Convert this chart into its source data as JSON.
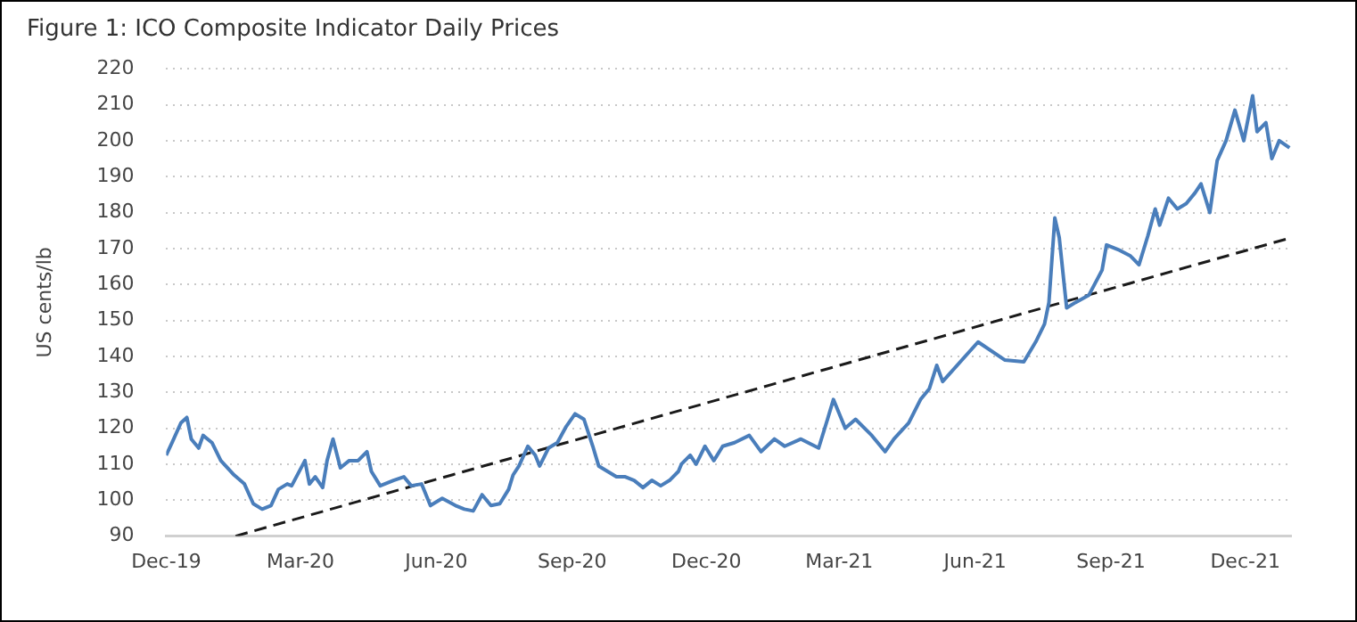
{
  "chart_data": {
    "type": "line",
    "title": "Figure 1: ICO Composite Indicator Daily Prices",
    "ylabel": "US cents/lb",
    "xlim": [
      "2019-12-01",
      "2022-01-01"
    ],
    "xticks": [
      {
        "value": "2019-12-01",
        "label": "Dec-19"
      },
      {
        "value": "2020-03-01",
        "label": "Mar-20"
      },
      {
        "value": "2020-06-01",
        "label": "Jun-20"
      },
      {
        "value": "2020-09-01",
        "label": "Sep-20"
      },
      {
        "value": "2020-12-01",
        "label": "Dec-20"
      },
      {
        "value": "2021-03-01",
        "label": "Mar-21"
      },
      {
        "value": "2021-06-01",
        "label": "Jun-21"
      },
      {
        "value": "2021-09-01",
        "label": "Sep-21"
      },
      {
        "value": "2021-12-01",
        "label": "Dec-21"
      }
    ],
    "ylim": [
      90,
      220
    ],
    "yticks": [
      90,
      100,
      110,
      120,
      130,
      140,
      150,
      160,
      170,
      180,
      190,
      200,
      210,
      220
    ],
    "grid": "y",
    "marker": "none",
    "series": [
      {
        "color": "#4a7ebb",
        "line_style": "solid",
        "x": [
          "2019-12-01",
          "2019-12-05",
          "2019-12-11",
          "2019-12-15",
          "2019-12-18",
          "2019-12-23",
          "2019-12-26",
          "2020-01-01",
          "2020-01-07",
          "2020-01-16",
          "2020-01-23",
          "2020-01-29",
          "2020-02-04",
          "2020-02-10",
          "2020-02-15",
          "2020-02-21",
          "2020-02-24",
          "2020-03-04",
          "2020-03-07",
          "2020-03-11",
          "2020-03-16",
          "2020-03-19",
          "2020-03-23",
          "2020-03-28",
          "2020-04-03",
          "2020-04-09",
          "2020-04-15",
          "2020-04-18",
          "2020-04-24",
          "2020-05-03",
          "2020-05-10",
          "2020-05-15",
          "2020-05-22",
          "2020-05-28",
          "2020-06-05",
          "2020-06-14",
          "2020-06-20",
          "2020-06-26",
          "2020-07-02",
          "2020-07-08",
          "2020-07-14",
          "2020-07-20",
          "2020-07-23",
          "2020-07-27",
          "2020-08-02",
          "2020-08-07",
          "2020-08-10",
          "2020-08-16",
          "2020-08-22",
          "2020-08-28",
          "2020-09-03",
          "2020-09-09",
          "2020-09-15",
          "2020-09-19",
          "2020-09-25",
          "2020-10-01",
          "2020-10-07",
          "2020-10-13",
          "2020-10-19",
          "2020-10-25",
          "2020-10-31",
          "2020-11-06",
          "2020-11-12",
          "2020-11-14",
          "2020-11-20",
          "2020-11-24",
          "2020-11-30",
          "2020-12-06",
          "2020-12-12",
          "2020-12-20",
          "2020-12-30",
          "2021-01-07",
          "2021-01-16",
          "2021-01-23",
          "2021-02-03",
          "2021-02-15",
          "2021-02-21",
          "2021-02-25",
          "2021-03-05",
          "2021-03-12",
          "2021-03-23",
          "2021-04-01",
          "2021-04-07",
          "2021-04-17",
          "2021-04-25",
          "2021-05-01",
          "2021-05-06",
          "2021-05-10",
          "2021-06-03",
          "2021-06-21",
          "2021-07-04",
          "2021-07-12",
          "2021-07-18",
          "2021-07-21",
          "2021-07-25",
          "2021-07-28",
          "2021-08-02",
          "2021-08-08",
          "2021-08-17",
          "2021-08-26",
          "2021-08-29",
          "2021-09-07",
          "2021-09-14",
          "2021-09-20",
          "2021-09-26",
          "2021-10-01",
          "2021-10-04",
          "2021-10-10",
          "2021-10-16",
          "2021-10-22",
          "2021-10-28",
          "2021-11-01",
          "2021-11-07",
          "2021-11-12",
          "2021-11-18",
          "2021-11-24",
          "2021-11-30",
          "2021-12-06",
          "2021-12-09",
          "2021-12-15",
          "2021-12-19",
          "2021-12-24",
          "2021-12-31"
        ],
        "values": [
          112.5,
          116,
          121.5,
          123,
          117,
          114.5,
          118,
          116,
          111,
          107,
          104.5,
          99,
          97.5,
          98.5,
          103,
          104.5,
          104,
          111,
          104.5,
          106.5,
          103.5,
          111,
          117,
          109,
          111,
          111,
          113.5,
          108,
          104,
          105.5,
          106.5,
          104,
          104.5,
          98.5,
          100.5,
          98.5,
          97.5,
          97,
          101.5,
          98.5,
          99,
          103,
          107,
          109.5,
          115,
          112.5,
          109.5,
          114.5,
          116,
          120.5,
          124,
          122.5,
          115,
          109.5,
          108,
          106.5,
          106.5,
          105.5,
          103.5,
          105.5,
          104,
          105.5,
          108,
          110,
          112.5,
          110,
          115,
          111,
          115,
          116,
          118,
          113.5,
          117,
          115,
          117,
          114.5,
          122.5,
          128,
          120,
          122.5,
          118,
          113.5,
          117,
          121.5,
          128,
          131,
          137.5,
          133,
          144,
          139,
          138.5,
          144,
          149,
          155,
          178.5,
          173,
          153.5,
          155,
          157,
          164,
          171,
          169.5,
          168,
          165.5,
          173.5,
          181,
          176.5,
          184,
          181,
          182.5,
          185.5,
          188,
          180,
          194.5,
          200,
          208.5,
          200,
          212.5,
          202.5,
          205,
          195,
          200,
          198
        ]
      },
      {
        "type": "line",
        "color": "#1a1a1a",
        "line_style": "dashed",
        "x": [
          "2020-01-17",
          "2022-01-01"
        ],
        "values": [
          90,
          173
        ]
      }
    ]
  }
}
